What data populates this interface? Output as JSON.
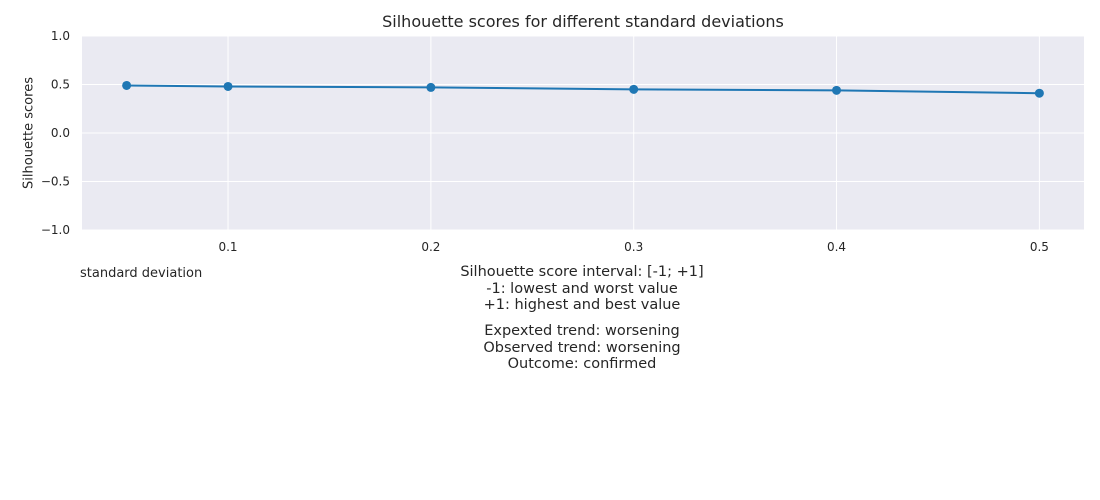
{
  "chart_data": {
    "type": "line",
    "title": "Silhouette scores for different standard deviations",
    "xlabel": "standard deviation",
    "ylabel": "Silhouette scores",
    "x": [
      0.05,
      0.1,
      0.2,
      0.3,
      0.4,
      0.5
    ],
    "series": [
      {
        "values": [
          0.49,
          0.48,
          0.47,
          0.45,
          0.44,
          0.41
        ]
      }
    ],
    "xlim": [
      0.028,
      0.522
    ],
    "ylim": [
      -1.0,
      1.0
    ],
    "xticks": [
      "0.1",
      "0.2",
      "0.3",
      "0.4",
      "0.5"
    ],
    "xtick_values": [
      0.1,
      0.2,
      0.3,
      0.4,
      0.5
    ],
    "yticks": [
      "1.0",
      "0.5",
      "0.0",
      "−0.5",
      "−1.0"
    ],
    "ytick_values": [
      1.0,
      0.5,
      0.0,
      -0.5,
      -1.0
    ],
    "grid": true,
    "colors": {
      "line": "#1f77b4",
      "background": "#eaeaf2",
      "grid": "#ffffff"
    }
  },
  "notes": {
    "interval": [
      "Silhouette score interval: [-1; +1]",
      "-1: lowest and worst value",
      "+1: highest and best value"
    ],
    "trend": [
      "Expexted trend: worsening",
      "Observed trend: worsening",
      "Outcome: confirmed"
    ]
  }
}
